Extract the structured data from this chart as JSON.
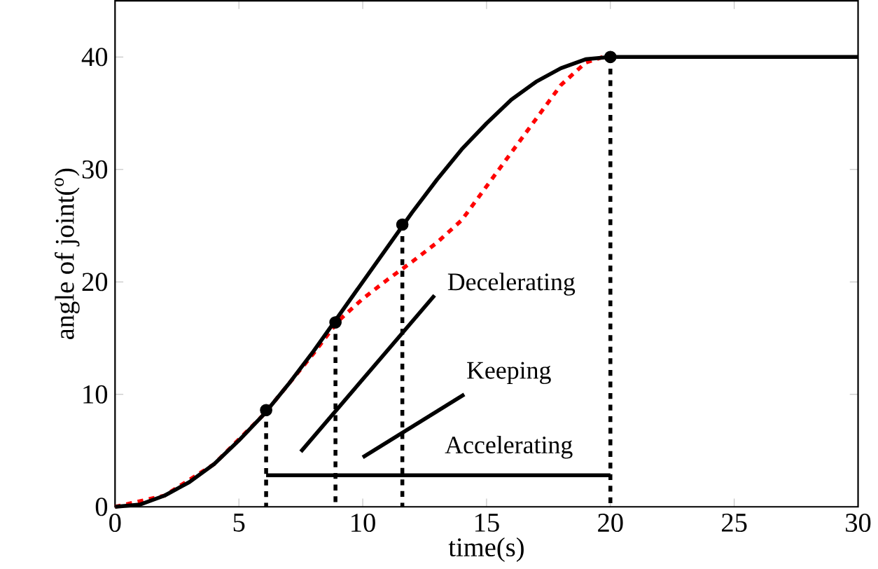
{
  "chart_data": {
    "type": "line",
    "xlabel": "time(s)",
    "ylabel": "angle of joint($^{o}$)",
    "xlim": [
      0,
      30
    ],
    "ylim": [
      0,
      45
    ],
    "xticks": [
      0,
      5,
      10,
      15,
      20,
      25,
      30
    ],
    "yticks": [
      0,
      10,
      20,
      30,
      40
    ],
    "grid": false,
    "series": [
      {
        "type": "line",
        "color": "#ff0000",
        "line_style": "dashed",
        "marker": "none",
        "x": [
          0,
          2,
          4,
          6,
          8,
          9,
          10,
          11,
          12,
          13,
          14,
          15,
          16,
          17,
          18,
          19,
          19.7
        ],
        "values": [
          0,
          1.0,
          3.8,
          8.2,
          13.6,
          16.5,
          18.5,
          20.2,
          21.8,
          23.5,
          25.5,
          28.5,
          31.5,
          34.5,
          37.5,
          39.5,
          40
        ]
      },
      {
        "type": "line",
        "color": "#000000",
        "line_style": "solid",
        "marker": "none",
        "x": [
          0,
          1,
          2,
          3,
          4,
          5,
          6,
          7,
          8,
          9,
          10,
          11,
          12,
          13,
          14,
          15,
          16,
          17,
          18,
          19,
          20,
          30
        ],
        "values": [
          0,
          0.2,
          1.0,
          2.2,
          3.8,
          5.9,
          8.2,
          10.9,
          13.8,
          16.9,
          20,
          23.1,
          26.2,
          29.1,
          31.8,
          34.1,
          36.2,
          37.8,
          39.0,
          39.8,
          40,
          40
        ]
      },
      {
        "type": "scatter",
        "color": "#000000",
        "marker": "circle",
        "x": [
          6.1,
          8.9,
          11.6,
          20
        ],
        "values": [
          8.6,
          16.4,
          25.1,
          40
        ]
      },
      {
        "type": "line",
        "color": "#000000",
        "line_style": "dashed",
        "marker": "none",
        "x": [
          6.1,
          6.1
        ],
        "values": [
          8.6,
          0
        ]
      },
      {
        "type": "line",
        "color": "#000000",
        "line_style": "dashed",
        "marker": "none",
        "x": [
          8.9,
          8.9
        ],
        "values": [
          16.4,
          0
        ]
      },
      {
        "type": "line",
        "color": "#000000",
        "line_style": "dashed",
        "marker": "none",
        "x": [
          11.6,
          11.6
        ],
        "values": [
          25.1,
          0
        ]
      },
      {
        "type": "line",
        "color": "#000000",
        "line_style": "dashed",
        "marker": "none",
        "x": [
          20,
          20
        ],
        "values": [
          40,
          0
        ]
      },
      {
        "color": "#000000",
        "line_style": "solid",
        "marker": "none",
        "x": [
          6.1,
          8.9,
          11.6,
          20
        ],
        "values": [
          2.8,
          2.8,
          2.8,
          2.8
        ]
      },
      {
        "type": "line",
        "color": "#000000",
        "line_style": "solid",
        "marker": "none",
        "x": [
          7.5,
          12.9
        ],
        "values": [
          4.9,
          18.8
        ]
      },
      {
        "type": "line",
        "color": "#000000",
        "line_style": "solid",
        "marker": "none",
        "x": [
          10.0,
          14.1
        ],
        "values": [
          4.4,
          10.0
        ]
      }
    ],
    "annotations": [
      "Decelerating",
      "Keeping",
      "Accelerating"
    ]
  }
}
